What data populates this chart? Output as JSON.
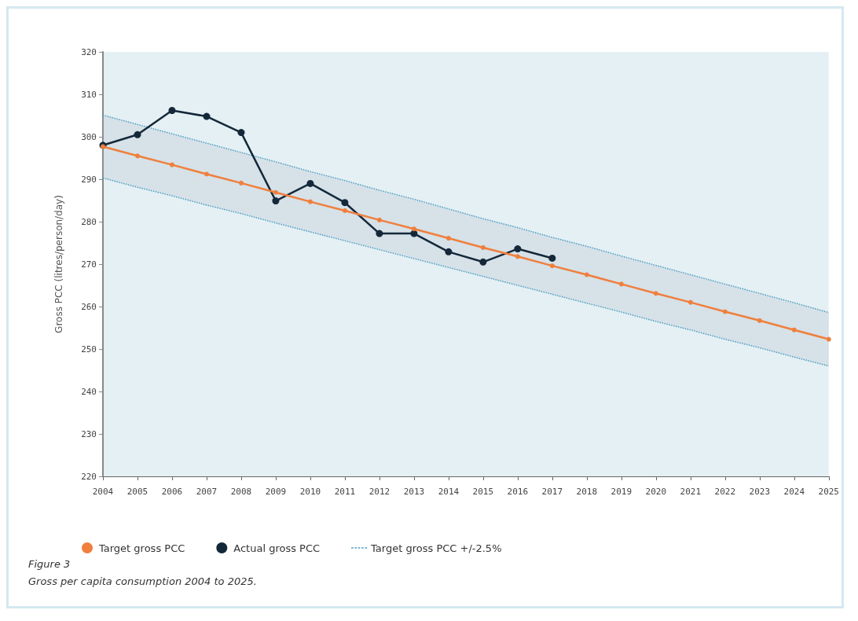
{
  "chart_data": {
    "type": "line",
    "title": "Figure 3",
    "subtitle": "Gross per capita consumption 2004 to 2025.",
    "ylabel": "Gross PCC (litres/person/day)",
    "categories": [
      "2004",
      "2005",
      "2006",
      "2007",
      "2008",
      "2009",
      "2010",
      "2011",
      "2012",
      "2013",
      "2014",
      "2015",
      "2016",
      "2017",
      "2018",
      "2019",
      "2020",
      "2021",
      "2022",
      "2023",
      "2024",
      "2025"
    ],
    "ylim": [
      220,
      320
    ],
    "yticks": [
      220,
      230,
      240,
      250,
      260,
      270,
      280,
      290,
      300,
      310,
      320
    ],
    "grid": false,
    "legend": "bottom left",
    "marker": "circle",
    "series": [
      {
        "name": "Target gross PCC",
        "color": "#f07f3c",
        "values": [
          297.7,
          295.5,
          293.4,
          291.2,
          289.1,
          286.9,
          284.7,
          282.6,
          280.4,
          278.3,
          276.1,
          273.9,
          271.8,
          269.6,
          267.5,
          265.3,
          263.1,
          261.0,
          258.8,
          256.7,
          254.5,
          252.3
        ],
        "upper": [
          305.1,
          302.9,
          300.7,
          298.5,
          296.3,
          294.1,
          291.8,
          289.7,
          287.4,
          285.3,
          283.0,
          280.7,
          278.6,
          276.3,
          274.2,
          271.9,
          269.7,
          267.5,
          265.3,
          263.1,
          260.9,
          258.6
        ],
        "lower": [
          290.3,
          288.1,
          286.1,
          283.9,
          281.9,
          279.7,
          277.6,
          275.5,
          273.4,
          271.3,
          269.2,
          267.1,
          265.0,
          262.9,
          260.8,
          258.7,
          256.5,
          254.5,
          252.3,
          250.3,
          248.1,
          246.0
        ]
      },
      {
        "name": "Actual gross PCC",
        "color": "#14283a",
        "values": [
          298,
          300.5,
          306.2,
          304.8,
          301,
          284.9,
          289,
          284.5,
          277.2,
          277.2,
          272.9,
          270.5,
          273.6,
          271.4,
          null,
          null,
          null,
          null,
          null,
          null,
          null,
          null
        ]
      },
      {
        "name": "Target gross PCC +/-2.5%",
        "color": "#4a9cc4",
        "line_style": "dotted",
        "marker": "none",
        "values": [
          305.1,
          302.9,
          300.7,
          298.5,
          296.3,
          294.1,
          291.8,
          289.7,
          287.4,
          285.3,
          283.0,
          280.7,
          278.6,
          276.3,
          274.2,
          271.9,
          269.7,
          267.5,
          265.3,
          263.1,
          260.9,
          258.6
        ]
      },
      {
        "color": "#4a9cc4",
        "line_style": "dotted",
        "marker": "none",
        "values": [
          290.3,
          288.1,
          286.1,
          283.9,
          281.9,
          279.7,
          277.6,
          275.5,
          273.4,
          271.3,
          269.2,
          267.1,
          265.0,
          262.9,
          260.8,
          258.7,
          256.5,
          254.5,
          252.3,
          250.3,
          248.1,
          246.0
        ]
      }
    ]
  }
}
